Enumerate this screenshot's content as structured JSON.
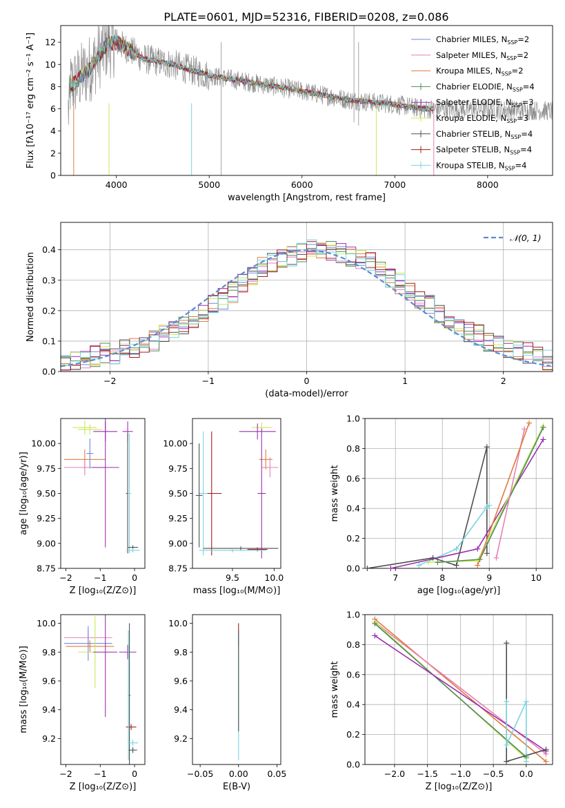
{
  "figure_title": "PLATE=0601, MJD=52316, FIBERID=0208, z=0.086",
  "colors": {
    "chabrier_miles": "#6f88dc",
    "salpeter_miles": "#e77fb5",
    "kroupa_miles": "#e07b3a",
    "chabrier_elodie": "#4f8a5b",
    "salpeter_elodie": "#9b2fae",
    "kroupa_elodie": "#c8e85a",
    "chabrier_stelib": "#4d4d4d",
    "salpeter_stelib": "#a01a1a",
    "kroupa_stelib": "#79d3df",
    "data": "#8c8c8c",
    "normal": "#5b8bd0",
    "grid": "#b0b0b0"
  },
  "chart_data": [
    {
      "id": "spectrum",
      "type": "line",
      "xlabel": "wavelength [Angstrom, rest frame]",
      "ylabel": "Flux [fλ10⁻¹⁷ erg cm⁻² s⁻¹ A⁻¹]",
      "xlim": [
        3400,
        8700
      ],
      "ylim": [
        0,
        13.5
      ],
      "xticks": [
        4000,
        5000,
        6000,
        7000,
        8000
      ],
      "yticks": [
        0,
        2,
        4,
        6,
        8,
        10,
        12
      ],
      "grid": false,
      "legend_position": "top-right",
      "continuum": [
        [
          3500,
          8.0
        ],
        [
          3700,
          9.5
        ],
        [
          3900,
          11.8
        ],
        [
          4000,
          12.0
        ],
        [
          4300,
          10.5
        ],
        [
          4600,
          10.0
        ],
        [
          5000,
          9.0
        ],
        [
          5500,
          8.3
        ],
        [
          6000,
          7.6
        ],
        [
          6500,
          6.8
        ],
        [
          7000,
          6.4
        ],
        [
          7300,
          6.0
        ],
        [
          8300,
          5.9
        ],
        [
          8700,
          5.8
        ]
      ],
      "series": [
        {
          "name": "Chabrier MILES",
          "nssp": "2",
          "color_key": "chabrier_miles"
        },
        {
          "name": "Salpeter MILES",
          "nssp": "2",
          "color_key": "salpeter_miles"
        },
        {
          "name": "Kroupa MILES",
          "nssp": "2",
          "color_key": "kroupa_miles"
        },
        {
          "name": "Chabrier ELODIE",
          "nssp": "4",
          "color_key": "chabrier_elodie"
        },
        {
          "name": "Salpeter ELODIE",
          "nssp": "3",
          "color_key": "salpeter_elodie"
        },
        {
          "name": "Kroupa ELODIE",
          "nssp": "3",
          "color_key": "kroupa_elodie"
        },
        {
          "name": "Chabrier STELIB",
          "nssp": "4",
          "color_key": "chabrier_stelib"
        },
        {
          "name": "Salpeter STELIB",
          "nssp": "4",
          "color_key": "salpeter_stelib"
        },
        {
          "name": "Kroupa STELIB",
          "nssp": "4",
          "color_key": "kroupa_stelib"
        }
      ]
    },
    {
      "id": "residuals",
      "type": "histogram",
      "xlabel": "(data-model)/error",
      "ylabel": "Normed distribution",
      "xlim": [
        -2.5,
        2.5
      ],
      "ylim": [
        0,
        0.49
      ],
      "xticks": [
        -2,
        -1,
        0,
        1,
        2
      ],
      "yticks": [
        0.0,
        0.1,
        0.2,
        0.3,
        0.4
      ],
      "grid": true,
      "legend_position": "top-right",
      "legend_label": "𝒩(0, 1)",
      "bin_start": -2.5,
      "bin_width": 0.1,
      "base_profile": [
        0.03,
        0.03,
        0.04,
        0.05,
        0.06,
        0.06,
        0.07,
        0.08,
        0.09,
        0.1,
        0.12,
        0.13,
        0.15,
        0.17,
        0.19,
        0.22,
        0.24,
        0.26,
        0.29,
        0.31,
        0.34,
        0.36,
        0.37,
        0.38,
        0.39,
        0.4,
        0.4,
        0.4,
        0.39,
        0.38,
        0.37,
        0.36,
        0.34,
        0.31,
        0.29,
        0.26,
        0.24,
        0.22,
        0.19,
        0.17,
        0.15,
        0.13,
        0.12,
        0.1,
        0.09,
        0.08,
        0.07,
        0.06,
        0.05,
        0.04
      ]
    },
    {
      "id": "age_vs_z",
      "type": "errorbar",
      "xlabel": "Z [log₁₀(Z/Z⊙)]",
      "ylabel": "age  [log₁₀(age/yr)]",
      "xlim": [
        -2.15,
        0.3
      ],
      "ylim": [
        8.75,
        10.25
      ],
      "xticks": [
        -2,
        -1,
        0
      ],
      "yticks": [
        8.75,
        9.0,
        9.25,
        9.5,
        9.75,
        10.0
      ],
      "points": [
        {
          "x": -1.45,
          "y": 10.16,
          "xerr": 0.35,
          "yerr": 0.07,
          "color_key": "kroupa_elodie"
        },
        {
          "x": -1.3,
          "y": 10.14,
          "xerr": 0.35,
          "yerr": 0.05,
          "color_key": "kroupa_elodie"
        },
        {
          "x": -0.85,
          "y": 10.12,
          "xerr": 0.35,
          "yerr": 0.1,
          "color_key": "salpeter_elodie"
        },
        {
          "x": -0.2,
          "y": 10.12,
          "xerr": 0.15,
          "yerr": 0.1,
          "color_key": "salpeter_elodie"
        },
        {
          "x": -1.45,
          "y": 9.84,
          "xerr": 0.6,
          "yerr": 0.1,
          "color_key": "kroupa_miles"
        },
        {
          "x": -1.45,
          "y": 9.76,
          "xerr": 0.6,
          "yerr": 0.08,
          "color_key": "salpeter_miles"
        },
        {
          "x": -1.3,
          "y": 9.9,
          "xerr": 0.1,
          "yerr": 0.15,
          "color_key": "chabrier_miles"
        },
        {
          "x": -0.85,
          "y": 9.76,
          "xerr": 0.4,
          "yerr": 0.8,
          "color_key": "salpeter_elodie"
        },
        {
          "x": -0.2,
          "y": 9.5,
          "xerr": 0.05,
          "yerr": 0.6,
          "color_key": "chabrier_stelib"
        },
        {
          "x": -0.15,
          "y": 9.5,
          "xerr": 0.05,
          "yerr": 0.6,
          "color_key": "kroupa_stelib"
        },
        {
          "x": -0.05,
          "y": 8.96,
          "xerr": 0.15,
          "yerr": 0.02,
          "color_key": "chabrier_stelib"
        },
        {
          "x": -0.05,
          "y": 8.93,
          "xerr": 0.2,
          "yerr": 0.02,
          "color_key": "kroupa_stelib"
        }
      ]
    },
    {
      "id": "age_vs_mass",
      "type": "errorbar",
      "xlabel": "mass [log₁₀(M/M⊙)]",
      "ylabel": "",
      "xlim": [
        9.02,
        10.08
      ],
      "ylim": [
        8.75,
        10.25
      ],
      "xticks": [
        9.5,
        10.0
      ],
      "yticks": [
        8.75,
        9.0,
        9.25,
        9.5,
        9.75,
        10.0
      ],
      "points": [
        {
          "x": 9.85,
          "y": 10.16,
          "xerr": 0.12,
          "yerr": 0.05,
          "color_key": "kroupa_elodie"
        },
        {
          "x": 9.8,
          "y": 10.12,
          "xerr": 0.22,
          "yerr": 0.08,
          "color_key": "salpeter_elodie"
        },
        {
          "x": 9.9,
          "y": 9.84,
          "xerr": 0.08,
          "yerr": 0.1,
          "color_key": "kroupa_miles"
        },
        {
          "x": 9.95,
          "y": 9.76,
          "xerr": 0.1,
          "yerr": 0.1,
          "color_key": "salpeter_miles"
        },
        {
          "x": 9.85,
          "y": 9.5,
          "xerr": 0.05,
          "yerr": 0.65,
          "color_key": "salpeter_elodie"
        },
        {
          "x": 9.8,
          "y": 8.94,
          "xerr": 0.12,
          "yerr": 0.02,
          "color_key": "salpeter_stelib"
        },
        {
          "x": 9.25,
          "y": 9.5,
          "xerr": 0.12,
          "yerr": 0.62,
          "color_key": "salpeter_stelib"
        },
        {
          "x": 9.15,
          "y": 9.5,
          "xerr": 0.05,
          "yerr": 0.62,
          "color_key": "kroupa_stelib"
        },
        {
          "x": 9.1,
          "y": 9.48,
          "xerr": 0.04,
          "yerr": 0.52,
          "color_key": "chabrier_stelib"
        },
        {
          "x": 9.6,
          "y": 8.95,
          "xerr": 0.45,
          "yerr": 0.02,
          "color_key": "chabrier_stelib"
        },
        {
          "x": 9.5,
          "y": 8.93,
          "xerr": 0.4,
          "yerr": 0.02,
          "color_key": "kroupa_stelib"
        }
      ]
    },
    {
      "id": "weight_vs_age",
      "type": "line",
      "xlabel": "age  [log₁₀(age/yr)]",
      "ylabel": "mass weight",
      "xlim": [
        6.35,
        10.35
      ],
      "ylim": [
        0.0,
        1.0
      ],
      "xticks": [
        7,
        8,
        9,
        10
      ],
      "yticks": [
        0.0,
        0.2,
        0.4,
        0.6,
        0.8,
        1.0
      ],
      "grid": true,
      "series": [
        {
          "color_key": "chabrier_stelib",
          "x": [
            6.4,
            7.8,
            8.3,
            8.95,
            8.95
          ],
          "y": [
            0.0,
            0.07,
            0.02,
            0.81,
            0.1
          ]
        },
        {
          "color_key": "kroupa_stelib",
          "x": [
            7.5,
            8.3,
            8.95,
            9.0
          ],
          "y": [
            0.02,
            0.13,
            0.41,
            0.42
          ]
        },
        {
          "color_key": "salpeter_elodie",
          "x": [
            6.9,
            8.75,
            10.15
          ],
          "y": [
            0.0,
            0.13,
            0.86
          ]
        },
        {
          "color_key": "kroupa_elodie",
          "x": [
            7.7,
            8.75,
            10.15
          ],
          "y": [
            0.04,
            0.05,
            0.95
          ]
        },
        {
          "color_key": "chabrier_elodie",
          "x": [
            7.9,
            8.8,
            10.15
          ],
          "y": [
            0.04,
            0.06,
            0.94
          ]
        },
        {
          "color_key": "salpeter_miles",
          "x": [
            9.15,
            9.75
          ],
          "y": [
            0.07,
            0.93
          ]
        },
        {
          "color_key": "kroupa_miles",
          "x": [
            8.75,
            9.85
          ],
          "y": [
            0.02,
            0.97
          ]
        }
      ]
    },
    {
      "id": "mass_vs_z",
      "type": "errorbar",
      "xlabel": "Z [log₁₀(Z/Z⊙)]",
      "ylabel": "mass [log₁₀(M/M⊙)]",
      "xlim": [
        -2.15,
        0.3
      ],
      "ylim": [
        9.02,
        10.06
      ],
      "xticks": [
        -2,
        -1,
        0
      ],
      "yticks": [
        9.2,
        9.4,
        9.6,
        9.8,
        10.0
      ],
      "points": [
        {
          "x": -1.35,
          "y": 9.9,
          "xerr": 0.7,
          "yerr": 0.05,
          "color_key": "salpeter_miles"
        },
        {
          "x": -1.35,
          "y": 9.86,
          "xerr": 0.7,
          "yerr": 0.12,
          "color_key": "chabrier_miles"
        },
        {
          "x": -1.3,
          "y": 9.84,
          "xerr": 0.7,
          "yerr": 0.04,
          "color_key": "kroupa_miles"
        },
        {
          "x": -1.15,
          "y": 9.8,
          "xerr": 0.5,
          "yerr": 0.25,
          "color_key": "kroupa_elodie"
        },
        {
          "x": -0.85,
          "y": 9.8,
          "xerr": 0.35,
          "yerr": 0.45,
          "color_key": "salpeter_elodie"
        },
        {
          "x": -0.2,
          "y": 9.8,
          "xerr": 0.25,
          "yerr": 0.05,
          "color_key": "salpeter_elodie"
        },
        {
          "x": -0.15,
          "y": 9.5,
          "xerr": 0.03,
          "yerr": 0.5,
          "color_key": "chabrier_stelib"
        },
        {
          "x": -0.1,
          "y": 9.28,
          "xerr": 0.15,
          "yerr": 0.02,
          "color_key": "salpeter_stelib"
        },
        {
          "x": -0.05,
          "y": 9.17,
          "xerr": 0.15,
          "yerr": 0.02,
          "color_key": "kroupa_stelib"
        },
        {
          "x": -0.05,
          "y": 9.12,
          "xerr": 0.12,
          "yerr": 0.02,
          "color_key": "chabrier_stelib"
        },
        {
          "x": -0.18,
          "y": 9.5,
          "xerr": 0.02,
          "yerr": 0.45,
          "color_key": "kroupa_stelib"
        }
      ]
    },
    {
      "id": "mass_vs_ebv",
      "type": "errorbar",
      "xlabel": "E(B-V)",
      "ylabel": "",
      "xlim": [
        -0.06,
        0.055
      ],
      "ylim": [
        9.02,
        10.06
      ],
      "xticks": [
        -0.05,
        0.0,
        0.05
      ],
      "yticks": [
        9.2,
        9.4,
        9.6,
        9.8,
        10.0
      ],
      "points": [
        {
          "x": 0.0,
          "y": 9.92,
          "xerr": 0.0,
          "yerr": 0.08,
          "color_key": "salpeter_stelib"
        },
        {
          "x": 0.0,
          "y": 9.5,
          "xerr": 0.0,
          "yerr": 0.45,
          "color_key": "kroupa_stelib"
        },
        {
          "x": 0.0,
          "y": 9.6,
          "xerr": 0.0,
          "yerr": 0.35,
          "color_key": "chabrier_stelib"
        }
      ]
    },
    {
      "id": "weight_vs_z",
      "type": "line",
      "xlabel": "Z [log₁₀(Z/Z⊙)]",
      "ylabel": "mass weight",
      "xlim": [
        -2.45,
        0.4
      ],
      "ylim": [
        0.0,
        1.0
      ],
      "xticks": [
        -2.0,
        -1.5,
        -1.0,
        -0.5,
        0.0
      ],
      "yticks": [
        0.0,
        0.2,
        0.4,
        0.6,
        0.8,
        1.0
      ],
      "grid": true,
      "series": [
        {
          "color_key": "kroupa_miles",
          "x": [
            -2.3,
            0.3
          ],
          "y": [
            0.97,
            0.02
          ]
        },
        {
          "color_key": "salpeter_miles",
          "x": [
            -2.3,
            0.3
          ],
          "y": [
            0.95,
            0.07
          ]
        },
        {
          "color_key": "kroupa_elodie",
          "x": [
            -2.3,
            0.0
          ],
          "y": [
            0.95,
            0.04
          ]
        },
        {
          "color_key": "chabrier_elodie",
          "x": [
            -2.3,
            0.0
          ],
          "y": [
            0.94,
            0.05
          ]
        },
        {
          "color_key": "salpeter_elodie",
          "x": [
            -2.3,
            0.3
          ],
          "y": [
            0.86,
            0.09
          ]
        },
        {
          "color_key": "chabrier_stelib",
          "x": [
            -0.3,
            -0.3,
            0.3
          ],
          "y": [
            0.81,
            0.02,
            0.1
          ]
        },
        {
          "color_key": "kroupa_stelib",
          "x": [
            -0.3,
            -0.3,
            0.0,
            0.0
          ],
          "y": [
            0.42,
            0.13,
            0.42,
            0.02
          ]
        }
      ]
    }
  ]
}
